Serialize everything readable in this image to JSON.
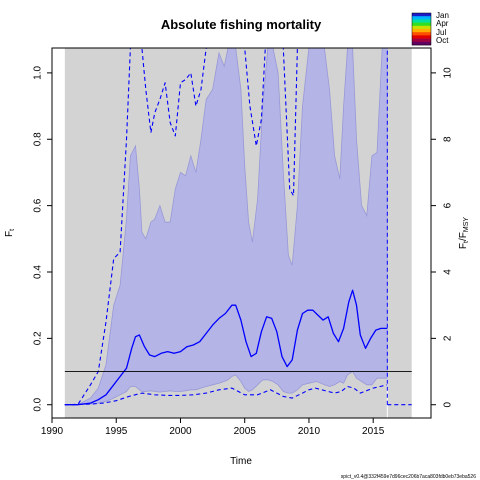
{
  "chart_data": {
    "type": "line",
    "title": "Absolute fishing mortality",
    "xlabel": "Time",
    "ylabel": "F",
    "ylabel_sub": "t",
    "y2label_main": "F",
    "y2label_sub1": "t",
    "y2label_mid": "/F",
    "y2label_sub2": "MSY",
    "xlim": [
      1990,
      2019.5
    ],
    "ylim": [
      -0.04,
      1.075
    ],
    "y2lim": [
      -0.4,
      10.75
    ],
    "x_ticks": [
      1990,
      1995,
      2000,
      2005,
      2010,
      2015
    ],
    "y_ticks": [
      0.0,
      0.2,
      0.4,
      0.6,
      0.8,
      1.0
    ],
    "y_tick_labels": [
      "0.0",
      "0.2",
      "0.4",
      "0.6",
      "0.8",
      "1.0"
    ],
    "y2_ticks": [
      0,
      2,
      4,
      6,
      8,
      10
    ],
    "y2_tick_labels": [
      "0",
      "2",
      "4",
      "6",
      "8",
      "10"
    ],
    "grey_band": [
      1991,
      2018
    ],
    "last_obs_x": 2016.1,
    "fmsy": 0.1,
    "grid": false,
    "legend": {
      "placement": "top-right",
      "labels": [
        "Jan",
        "Apr",
        "Jul",
        "Oct"
      ],
      "colors": [
        "#1b1bc8",
        "#00b4ff",
        "#00e0a0",
        "#30e020",
        "#c8e000",
        "#ffb000",
        "#ff5000",
        "#e00000",
        "#a00040",
        "#600060"
      ]
    },
    "series": [
      {
        "role": "estimate",
        "color": "#0000ff",
        "x": [
          1991,
          1992,
          1993,
          1993.6,
          1994.2,
          1994.8,
          1995.3,
          1995.8,
          1996.2,
          1996.5,
          1996.8,
          1997.2,
          1997.6,
          1998,
          1998.5,
          1999,
          1999.5,
          2000,
          2000.5,
          2001,
          2001.5,
          2002,
          2002.5,
          2003,
          2003.5,
          2004,
          2004.3,
          2004.7,
          2005.1,
          2005.5,
          2005.9,
          2006.3,
          2006.7,
          2007.1,
          2007.5,
          2007.9,
          2008.3,
          2008.7,
          2009.1,
          2009.5,
          2009.9,
          2010.3,
          2010.7,
          2011.1,
          2011.5,
          2011.9,
          2012.3,
          2012.7,
          2013.1,
          2013.4,
          2013.7,
          2014,
          2014.4,
          2014.8,
          2015.2,
          2015.6,
          2016.1
        ],
        "y": [
          0,
          0,
          0.005,
          0.015,
          0.03,
          0.06,
          0.085,
          0.11,
          0.17,
          0.205,
          0.21,
          0.175,
          0.15,
          0.145,
          0.155,
          0.16,
          0.155,
          0.16,
          0.175,
          0.18,
          0.19,
          0.215,
          0.24,
          0.26,
          0.275,
          0.3,
          0.3,
          0.255,
          0.19,
          0.145,
          0.155,
          0.22,
          0.265,
          0.26,
          0.22,
          0.145,
          0.115,
          0.135,
          0.225,
          0.275,
          0.285,
          0.285,
          0.27,
          0.255,
          0.265,
          0.215,
          0.19,
          0.23,
          0.31,
          0.345,
          0.3,
          0.21,
          0.17,
          0.2,
          0.225,
          0.23,
          0.23
        ]
      },
      {
        "role": "upper CI",
        "color": "#0000ff",
        "x": [
          1991,
          1992,
          1992.5,
          1993,
          1993.6,
          1994.2,
          1994.8,
          1995.3,
          1995.8,
          1996.1,
          1996.5,
          1996.8,
          1997,
          1997.3,
          1997.7,
          1998,
          1998.4,
          1998.8,
          1999.2,
          1999.6,
          2000,
          2000.4,
          2000.8,
          2001.2,
          2001.6,
          2002,
          2002.2,
          2003,
          2004,
          2005,
          2005.4,
          2005.9,
          2006.3,
          2006.6,
          2007,
          2008,
          2008.5,
          2008.8,
          2009.1,
          2009.6,
          2010,
          2011,
          2012,
          2013,
          2014,
          2015,
          2015.5,
          2016.1
        ],
        "y": [
          0,
          0,
          0.03,
          0.06,
          0.1,
          0.25,
          0.44,
          0.46,
          0.8,
          1.075,
          1.075,
          1.075,
          1.075,
          0.95,
          0.82,
          0.88,
          0.92,
          0.97,
          0.85,
          0.81,
          0.97,
          0.98,
          1.0,
          0.9,
          0.95,
          1.075,
          1.075,
          1.075,
          1.075,
          1.075,
          0.9,
          0.78,
          0.86,
          1.075,
          1.075,
          1.075,
          0.65,
          0.63,
          1.075,
          1.075,
          1.075,
          1.075,
          1.075,
          1.075,
          1.075,
          1.075,
          1.075,
          1.075
        ]
      },
      {
        "role": "lower CI",
        "color": "#0000ff",
        "x": [
          1991,
          1993,
          1994,
          1995,
          1996,
          1997,
          1998,
          1999,
          2000,
          2001,
          2002,
          2003,
          2004,
          2005,
          2006,
          2007,
          2008,
          2008.7,
          2009.5,
          2010,
          2010.5,
          2011,
          2011.5,
          2012,
          2012.5,
          2013,
          2013.5,
          2014,
          2015,
          2016.1
        ],
        "y": [
          0,
          0.002,
          0.005,
          0.012,
          0.025,
          0.035,
          0.03,
          0.028,
          0.028,
          0.03,
          0.035,
          0.045,
          0.05,
          0.03,
          0.03,
          0.045,
          0.025,
          0.02,
          0.035,
          0.045,
          0.05,
          0.045,
          0.04,
          0.035,
          0.04,
          0.055,
          0.05,
          0.035,
          0.05,
          0.06
        ]
      }
    ],
    "band": {
      "color": "#aaaaee",
      "x": [
        1991,
        1992,
        1993,
        1993.6,
        1994.2,
        1994.8,
        1995.3,
        1995.8,
        1996.1,
        1996.5,
        1996.8,
        1997,
        1997.3,
        1997.7,
        1998,
        1998.4,
        1998.8,
        1999.2,
        1999.6,
        2000,
        2000.4,
        2000.8,
        2001.2,
        2001.6,
        2002,
        2002.5,
        2003,
        2003.4,
        2003.7,
        2004,
        2004.3,
        2004.7,
        2005,
        2005.3,
        2005.6,
        2006,
        2006.4,
        2006.8,
        2007.2,
        2007.6,
        2008,
        2008.4,
        2008.7,
        2009.1,
        2009.5,
        2010,
        2010.6,
        2011.2,
        2011.6,
        2012,
        2012.4,
        2012.7,
        2013,
        2013.4,
        2013.7,
        2014.1,
        2014.5,
        2014.9,
        2015.3,
        2015.7,
        2016.1
      ],
      "upper": [
        0,
        0,
        0.02,
        0.05,
        0.12,
        0.3,
        0.36,
        0.56,
        0.75,
        0.78,
        0.65,
        0.52,
        0.5,
        0.55,
        0.56,
        0.6,
        0.55,
        0.55,
        0.65,
        0.7,
        0.69,
        0.75,
        0.7,
        0.8,
        0.92,
        0.95,
        1.06,
        1.02,
        1.075,
        1.075,
        1.075,
        0.95,
        0.72,
        0.55,
        0.49,
        0.62,
        0.9,
        1.075,
        1.075,
        1.0,
        0.7,
        0.45,
        0.42,
        0.6,
        0.9,
        1.075,
        1.075,
        1.075,
        0.95,
        0.75,
        0.68,
        0.9,
        1.075,
        1.075,
        0.8,
        0.6,
        0.57,
        0.75,
        0.76,
        1.075,
        1.075
      ],
      "lower": [
        0,
        0,
        0.002,
        0.005,
        0.01,
        0.02,
        0.03,
        0.04,
        0.055,
        0.055,
        0.045,
        0.04,
        0.04,
        0.042,
        0.04,
        0.038,
        0.04,
        0.042,
        0.04,
        0.04,
        0.042,
        0.045,
        0.045,
        0.05,
        0.055,
        0.06,
        0.065,
        0.07,
        0.075,
        0.085,
        0.09,
        0.07,
        0.05,
        0.04,
        0.045,
        0.06,
        0.075,
        0.075,
        0.07,
        0.06,
        0.04,
        0.035,
        0.035,
        0.045,
        0.06,
        0.065,
        0.07,
        0.06,
        0.055,
        0.06,
        0.07,
        0.065,
        0.09,
        0.1,
        0.08,
        0.07,
        0.06,
        0.06,
        0.08,
        0.08,
        0.08
      ]
    },
    "prediction": {
      "color": "#0000ff",
      "x": [
        2016.1,
        2018
      ],
      "y": [
        0,
        0
      ]
    }
  },
  "footer": {
    "text": "spict_v0.4@332f459e7d96cec206b7aca803fdb0eb73eba526"
  }
}
